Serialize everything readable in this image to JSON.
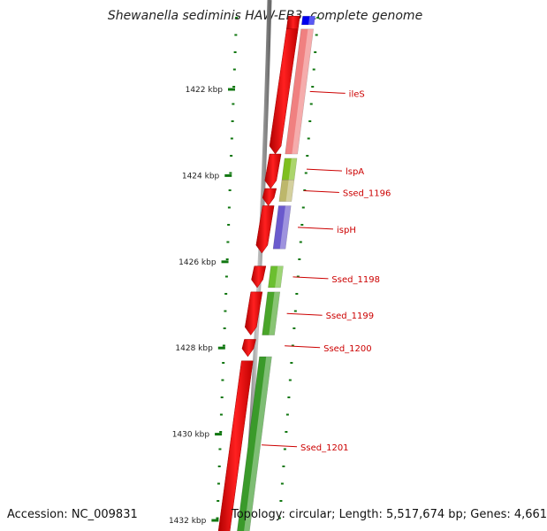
{
  "title": "Shewanella sediminis HAW-EB3, complete genome",
  "footer": {
    "accession": "Accession: NC_009831",
    "topology": "Topology: circular; Length: 5,517,674 bp; Genes: 4,661"
  },
  "scale": {
    "range_kbp": [
      1420.3,
      1432.3
    ],
    "ticks": [
      {
        "kbp": 1422,
        "label": "1422 kbp"
      },
      {
        "kbp": 1424,
        "label": "1424 kbp"
      },
      {
        "kbp": 1426,
        "label": "1426 kbp"
      },
      {
        "kbp": 1428,
        "label": "1428 kbp"
      },
      {
        "kbp": 1430,
        "label": "1430 kbp"
      },
      {
        "kbp": 1432,
        "label": "1432 kbp"
      }
    ]
  },
  "genes": [
    {
      "name": "",
      "start": 1420.3,
      "end": 1420.5,
      "color": "#0000ee"
    },
    {
      "name": "ileS",
      "start": 1420.6,
      "end": 1423.5,
      "color": "#f08080"
    },
    {
      "name": "lspA",
      "start": 1423.6,
      "end": 1424.1,
      "color": "#7fbf1f"
    },
    {
      "name": "Ssed_1196",
      "start": 1424.1,
      "end": 1424.6,
      "color": "#bdb76b"
    },
    {
      "name": "ispH",
      "start": 1424.7,
      "end": 1425.7,
      "color": "#6a5acd"
    },
    {
      "name": "Ssed_1198",
      "start": 1426.1,
      "end": 1426.6,
      "color": "#6bbf2f"
    },
    {
      "name": "Ssed_1199",
      "start": 1426.7,
      "end": 1427.7,
      "color": "#4aa52a"
    },
    {
      "name": "Ssed_1200",
      "start": 1427.8,
      "end": 1428.1,
      "color": "#ffffff"
    },
    {
      "name": "Ssed_1201",
      "start": 1428.2,
      "end": 1432.3,
      "color": "#3a9a2a"
    }
  ],
  "colors": {
    "forward_strand": "#ee0000",
    "axis_line": "#888888",
    "tick": "#117711",
    "label": "#cc0000"
  }
}
